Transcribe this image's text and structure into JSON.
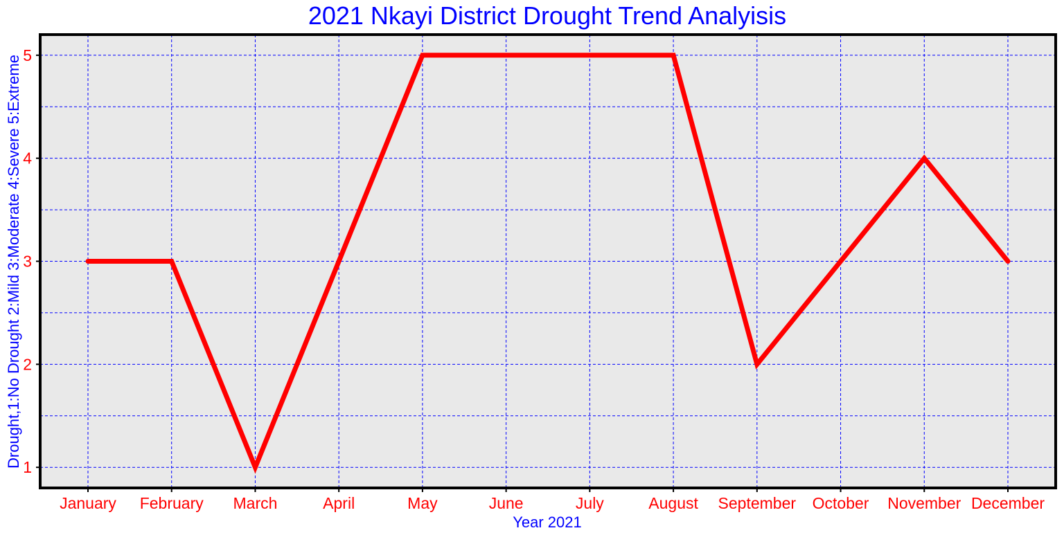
{
  "chart_data": {
    "type": "line",
    "title": "2021 Nkayi District Drought Trend Analyisis",
    "xlabel": "Year 2021",
    "ylabel": "Drought,1:No Drought 2:Mild 3:Moderate 4:Severe 5:Extreme",
    "categories": [
      "January",
      "February",
      "March",
      "April",
      "May",
      "June",
      "July",
      "August",
      "September",
      "October",
      "November",
      "December"
    ],
    "series": [
      {
        "values": [
          3,
          3,
          1,
          3,
          5,
          5,
          5,
          5,
          2,
          3,
          4,
          3
        ]
      }
    ],
    "ylim": [
      0.8,
      5.2
    ],
    "yticks": [
      "1",
      "2",
      "3",
      "4",
      "5"
    ],
    "grid": true,
    "colors": {
      "line": "#ff0000",
      "grid": "#0000ff",
      "panel": "#e9e9e9",
      "border": "#000000",
      "text": "#0000ff",
      "ticks": "#ff0000"
    }
  }
}
